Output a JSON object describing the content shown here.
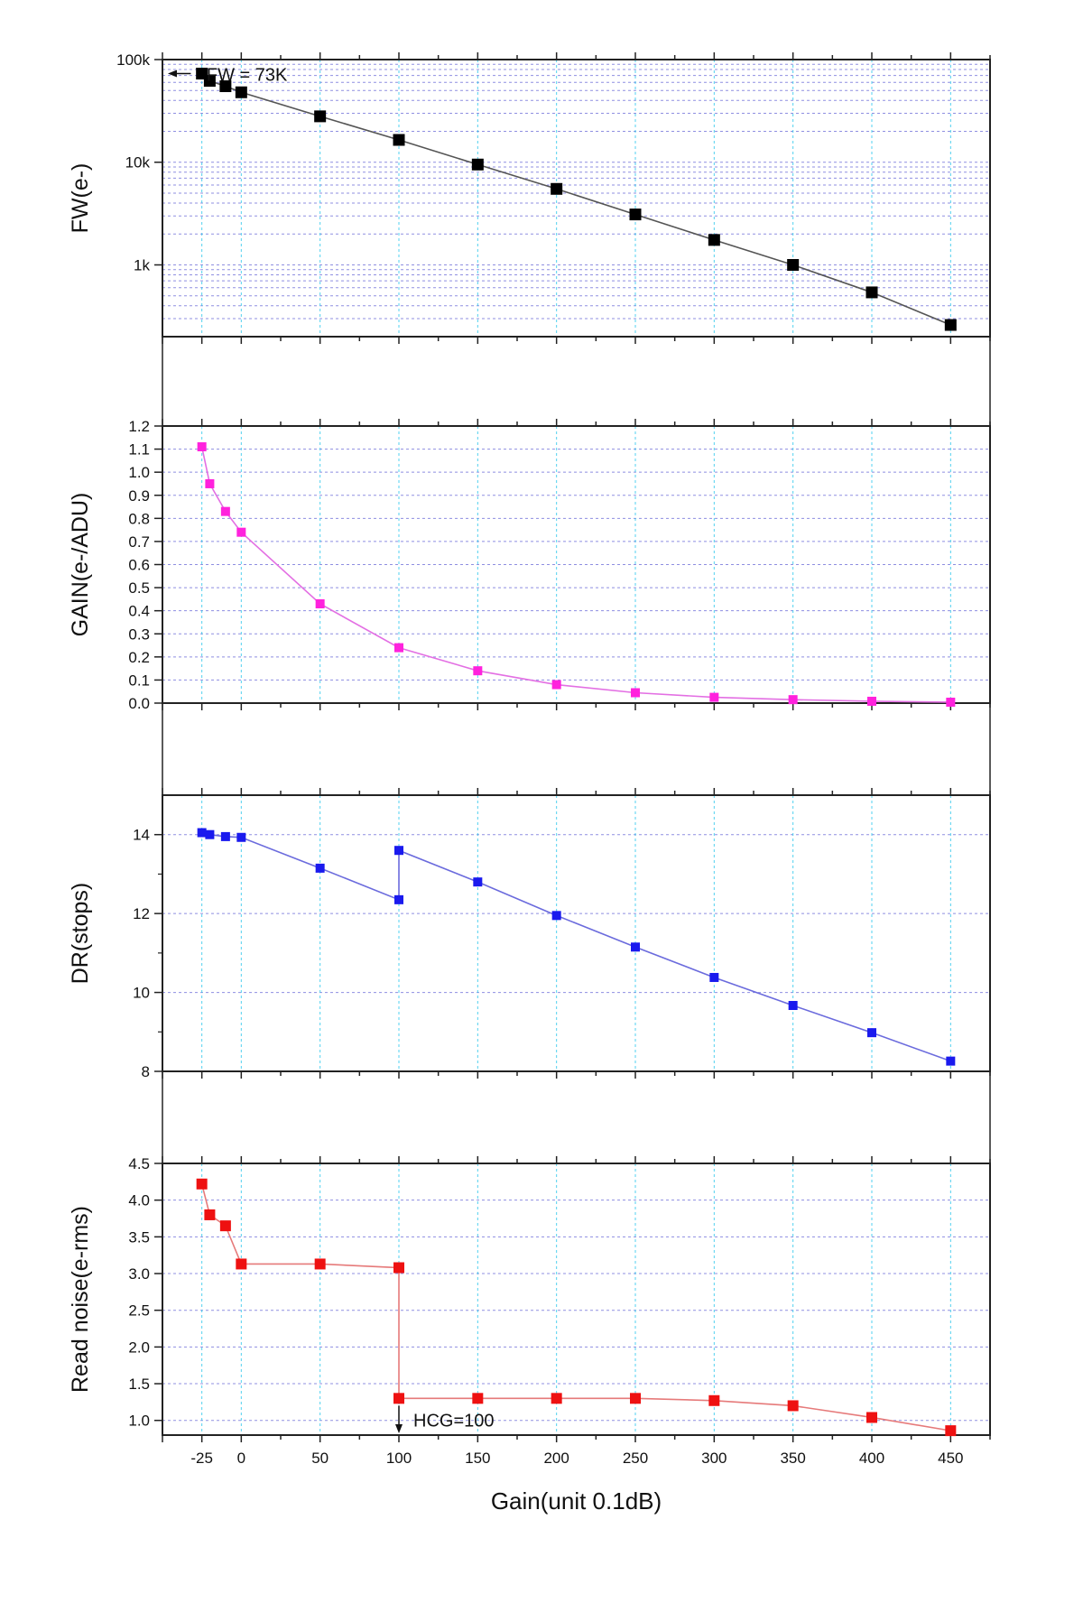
{
  "figure": {
    "xlabel": "Gain(unit 0.1dB)",
    "x_ticks": [
      -25,
      0,
      50,
      100,
      150,
      200,
      250,
      300,
      350,
      400,
      450
    ],
    "x_tick_labels": [
      "-25",
      "0",
      "50",
      "100",
      "150",
      "200",
      "250",
      "300",
      "350",
      "400",
      "450"
    ],
    "x_range": [
      -50,
      475
    ]
  },
  "chart_data": [
    {
      "type": "line",
      "ylabel": "FW(e-)",
      "yscale": "log",
      "ylim": [
        200,
        100000
      ],
      "y_ticks": [
        1000,
        10000,
        100000
      ],
      "y_tick_labels": [
        "1k",
        "10k",
        "100k"
      ],
      "grid": true,
      "color": "#000000",
      "line_color": "#555555",
      "series": [
        {
          "x": [
            -25,
            -20,
            -10,
            0,
            50,
            100,
            150,
            200,
            250,
            300,
            350,
            400,
            450
          ],
          "values": [
            73000,
            62000,
            55000,
            48000,
            28000,
            16500,
            9500,
            5500,
            3100,
            1750,
            1000,
            540,
            260
          ]
        }
      ],
      "annotations": [
        {
          "text": "FW = 73K"
        }
      ]
    },
    {
      "type": "line",
      "ylabel": "GAIN(e-/ADU)",
      "yscale": "linear",
      "ylim": [
        0.0,
        1.2
      ],
      "y_ticks": [
        0.0,
        0.1,
        0.2,
        0.3,
        0.4,
        0.5,
        0.6,
        0.7,
        0.8,
        0.9,
        1.0,
        1.1,
        1.2
      ],
      "y_tick_labels": [
        "0.0",
        "0.1",
        "0.2",
        "0.3",
        "0.4",
        "0.5",
        "0.6",
        "0.7",
        "0.8",
        "0.9",
        "1.0",
        "1.1",
        "1.2"
      ],
      "grid": true,
      "color": "#ff22dd",
      "line_color": "#e36fe3",
      "series": [
        {
          "x": [
            -25,
            -20,
            -10,
            0,
            50,
            100,
            150,
            200,
            250,
            300,
            350,
            400,
            450
          ],
          "values": [
            1.11,
            0.95,
            0.83,
            0.74,
            0.43,
            0.24,
            0.14,
            0.08,
            0.045,
            0.025,
            0.015,
            0.008,
            0.004
          ]
        }
      ]
    },
    {
      "type": "line",
      "ylabel": "DR(stops)",
      "yscale": "linear",
      "ylim": [
        8,
        15
      ],
      "y_ticks": [
        8,
        10,
        12,
        14
      ],
      "y_tick_labels": [
        "8",
        "10",
        "12",
        "14"
      ],
      "grid": true,
      "color": "#1a1aee",
      "line_color": "#6b6bdd",
      "series": [
        {
          "x": [
            -25,
            -20,
            -10,
            0,
            50,
            100,
            100,
            150,
            200,
            250,
            300,
            350,
            400,
            450
          ],
          "values": [
            14.05,
            14.0,
            13.95,
            13.93,
            13.15,
            12.35,
            13.6,
            12.8,
            11.95,
            11.15,
            10.38,
            9.67,
            8.98,
            8.26
          ]
        }
      ]
    },
    {
      "type": "line",
      "ylabel": "Read noise(e-rms)",
      "yscale": "linear",
      "ylim": [
        0.8,
        4.5
      ],
      "y_ticks": [
        1.0,
        1.5,
        2.0,
        2.5,
        3.0,
        3.5,
        4.0,
        4.5
      ],
      "y_tick_labels": [
        "1.0",
        "1.5",
        "2.0",
        "2.5",
        "3.0",
        "3.5",
        "4.0",
        "4.5"
      ],
      "grid": true,
      "color": "#ee1111",
      "line_color": "#e67a7a",
      "series": [
        {
          "x": [
            -25,
            -20,
            -10,
            0,
            50,
            100,
            100,
            150,
            200,
            250,
            300,
            350,
            400,
            450
          ],
          "values": [
            4.22,
            3.8,
            3.65,
            3.13,
            3.13,
            3.08,
            1.3,
            1.3,
            1.3,
            1.3,
            1.27,
            1.2,
            1.04,
            0.86
          ]
        }
      ],
      "annotations": [
        {
          "text": "HCG=100"
        }
      ]
    }
  ]
}
